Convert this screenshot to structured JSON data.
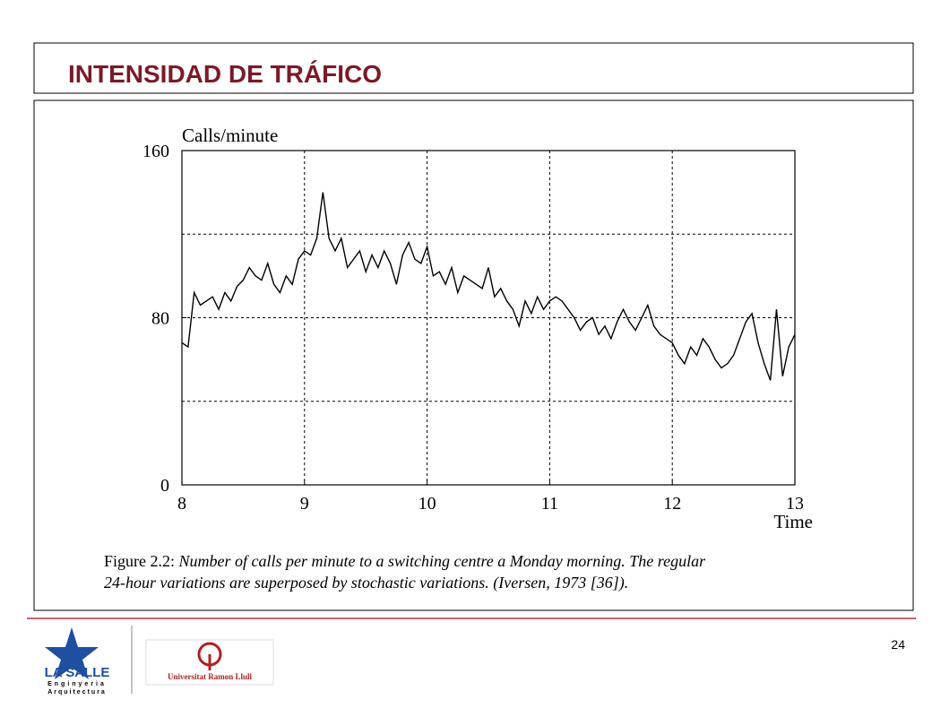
{
  "slide": {
    "title": "INTENSIDAD DE TRÁFICO",
    "page": "24",
    "logo_left": {
      "name": "LA SALLE",
      "line1": "Enginyeria",
      "line2": "Arquitectura"
    },
    "logo_right": "Universitat Ramon Llull"
  },
  "chart_data": {
    "type": "line",
    "ylabel": "Calls/minute",
    "xlabel": "Time",
    "caption": {
      "label": "Figure 2.2:",
      "line1": "Number of calls per minute to a switching centre a Monday morning. The regular",
      "line2": "24-hour variations are superposed by stochastic variations. (Iversen, 1973 [36])."
    },
    "color": "#000000",
    "xlim": [
      8,
      13
    ],
    "xticks": [
      8,
      9,
      10,
      11,
      12,
      13
    ],
    "ylim": [
      0,
      160
    ],
    "yticks": [
      0,
      80,
      160
    ],
    "grid": true,
    "xgrid": [
      9,
      10,
      11,
      12
    ],
    "ygrid": [
      40,
      80,
      120
    ],
    "x": [
      8.0,
      8.05,
      8.1,
      8.15,
      8.2,
      8.25,
      8.3,
      8.35,
      8.4,
      8.45,
      8.5,
      8.55,
      8.6,
      8.65,
      8.7,
      8.75,
      8.8,
      8.85,
      8.9,
      8.95,
      9.0,
      9.05,
      9.1,
      9.15,
      9.2,
      9.25,
      9.3,
      9.35,
      9.4,
      9.45,
      9.5,
      9.55,
      9.6,
      9.65,
      9.7,
      9.75,
      9.8,
      9.85,
      9.9,
      9.95,
      10.0,
      10.05,
      10.1,
      10.15,
      10.2,
      10.25,
      10.3,
      10.35,
      10.4,
      10.45,
      10.5,
      10.55,
      10.6,
      10.65,
      10.7,
      10.75,
      10.8,
      10.85,
      10.9,
      10.95,
      11.0,
      11.05,
      11.1,
      11.15,
      11.2,
      11.25,
      11.3,
      11.35,
      11.4,
      11.45,
      11.5,
      11.55,
      11.6,
      11.65,
      11.7,
      11.75,
      11.8,
      11.85,
      11.9,
      11.95,
      12.0,
      12.05,
      12.1,
      12.15,
      12.2,
      12.25,
      12.3,
      12.35,
      12.4,
      12.45,
      12.5,
      12.55,
      12.6,
      12.65,
      12.7,
      12.75,
      12.8,
      12.85,
      12.9,
      12.95,
      13.0
    ],
    "values": [
      68,
      66,
      92,
      86,
      88,
      90,
      84,
      92,
      88,
      95,
      98,
      104,
      100,
      98,
      106,
      96,
      92,
      100,
      96,
      108,
      112,
      110,
      118,
      140,
      118,
      112,
      118,
      104,
      108,
      112,
      102,
      110,
      104,
      112,
      106,
      96,
      110,
      116,
      108,
      106,
      114,
      100,
      102,
      96,
      104,
      92,
      100,
      98,
      96,
      94,
      104,
      90,
      94,
      88,
      84,
      76,
      88,
      82,
      90,
      84,
      88,
      90,
      88,
      84,
      80,
      74,
      78,
      80,
      72,
      76,
      70,
      78,
      84,
      78,
      74,
      80,
      86,
      76,
      72,
      70,
      68,
      62,
      58,
      66,
      62,
      70,
      66,
      60,
      56,
      58,
      62,
      70,
      78,
      82,
      68,
      58,
      50,
      84,
      52,
      66,
      72
    ]
  }
}
